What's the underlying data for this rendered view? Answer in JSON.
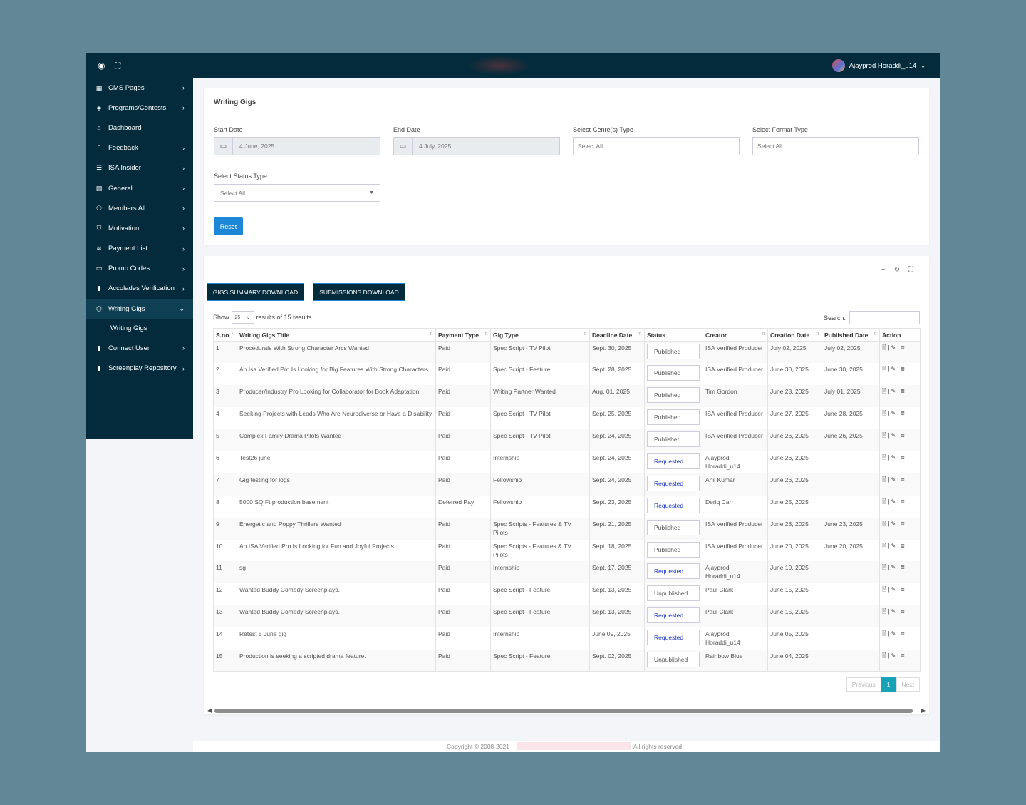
{
  "user": {
    "name": "Ajayprod Horaddi_u14"
  },
  "sidebar": {
    "items": [
      {
        "label": "CMS Pages",
        "icon": "grid-icon",
        "arrow": true
      },
      {
        "label": "Programs/Contests",
        "icon": "eye-icon",
        "arrow": true
      },
      {
        "label": "Dashboard",
        "icon": "home-icon",
        "arrow": false
      },
      {
        "label": "Feedback",
        "icon": "tablet-icon",
        "arrow": true
      },
      {
        "label": "ISA Insider",
        "icon": "list-icon",
        "arrow": true
      },
      {
        "label": "General",
        "icon": "database-icon",
        "arrow": true
      },
      {
        "label": "Members All",
        "icon": "users-icon",
        "arrow": true
      },
      {
        "label": "Motivation",
        "icon": "shield-icon",
        "arrow": true
      },
      {
        "label": "Payment List",
        "icon": "layers-icon",
        "arrow": true
      },
      {
        "label": "Promo Codes",
        "icon": "card-icon",
        "arrow": true
      },
      {
        "label": "Accolades Verification",
        "icon": "bar-chart-icon",
        "arrow": true
      },
      {
        "label": "Writing Gigs",
        "icon": "box-icon",
        "arrow": true,
        "active": true
      }
    ],
    "sub_item": "Writing Gigs",
    "bottom_items": [
      {
        "label": "Connect User",
        "icon": "bar-chart-icon"
      },
      {
        "label": "Screenplay Repository",
        "icon": "bar-chart-icon"
      }
    ]
  },
  "filters": {
    "title": "Writing Gigs",
    "start_date_label": "Start Date",
    "start_date": "4 June, 2025",
    "end_date_label": "End Date",
    "end_date": "4 July, 2025",
    "genre_label": "Select Genre(s) Type",
    "genre_value": "Select All",
    "format_label": "Select Format Type",
    "format_value": "Select All",
    "status_label": "Select Status Type",
    "status_value": "Select All",
    "reset_label": "Reset"
  },
  "table_card": {
    "btn_summary": "GIGS SUMMARY DOWNLOAD",
    "btn_submissions": "SUBMISSIONS DOWNLOAD",
    "show_label": "Show",
    "page_size": "25",
    "results_text": "results of 15 results",
    "search_label": "Search:",
    "columns": [
      "S.no",
      "Writing Gigs Title",
      "Payment Type",
      "Gig Type",
      "Deadline Date",
      "Status",
      "Creator",
      "Creation Date",
      "Published Date",
      "Action"
    ],
    "rows": [
      {
        "sno": "1",
        "title": "Procedurals With Strong Character Arcs Wanted",
        "payment": "Paid",
        "gig_type": "Spec Script - TV Pilot",
        "deadline": "Sept. 30, 2025",
        "status": "Published",
        "creator": "ISA Verified Producer",
        "created": "July 02, 2025",
        "published": "July 02, 2025"
      },
      {
        "sno": "2",
        "title": "An Isa Verified Pro Is Looking for Big Features With Strong Characters",
        "payment": "Paid",
        "gig_type": "Spec Script - Feature",
        "deadline": "Sept. 28, 2025",
        "status": "Published",
        "creator": "ISA Verified Producer",
        "created": "June 30, 2025",
        "published": "June 30, 2025"
      },
      {
        "sno": "3",
        "title": "Producer/Industry Pro Looking for Collaborator for Book Adaptation",
        "payment": "Paid",
        "gig_type": "Writing Partner Wanted",
        "deadline": "Aug. 01, 2025",
        "status": "Published",
        "creator": "Tim Gordon",
        "created": "June 28, 2025",
        "published": "July 01, 2025"
      },
      {
        "sno": "4",
        "title": "Seeking Projects with Leads Who Are Neurodiverse or Have a Disability",
        "payment": "Paid",
        "gig_type": "Spec Script - TV Pilot",
        "deadline": "Sept. 25, 2025",
        "status": "Published",
        "creator": "ISA Verified Producer",
        "created": "June 27, 2025",
        "published": "June 28, 2025"
      },
      {
        "sno": "5",
        "title": "Complex Family Drama Pilots Wanted",
        "payment": "Paid",
        "gig_type": "Spec Script - TV Pilot",
        "deadline": "Sept. 24, 2025",
        "status": "Published",
        "creator": "ISA Verified Producer",
        "created": "June 26, 2025",
        "published": "June 26, 2025"
      },
      {
        "sno": "6",
        "title": "Test26 june",
        "payment": "Paid",
        "gig_type": "Internship",
        "deadline": "Sept. 24, 2025",
        "status": "Requested",
        "creator": "Ajayprod Horaddi_u14",
        "created": "June 26, 2025",
        "published": ""
      },
      {
        "sno": "7",
        "title": "Gig testing for logs",
        "payment": "Paid",
        "gig_type": "Fellowship",
        "deadline": "Sept. 24, 2025",
        "status": "Requested",
        "creator": "Anil Kumar",
        "created": "June 26, 2025",
        "published": ""
      },
      {
        "sno": "8",
        "title": "5000 SQ Ft production basement",
        "payment": "Deferred Pay",
        "gig_type": "Fellowship",
        "deadline": "Sept. 23, 2025",
        "status": "Requested",
        "creator": "Deriq Carr",
        "created": "June 25, 2025",
        "published": ""
      },
      {
        "sno": "9",
        "title": "Energetic and Poppy Thrillers Wanted",
        "payment": "Paid",
        "gig_type": "Spec Scripts - Features & TV Pilots",
        "deadline": "Sept. 21, 2025",
        "status": "Published",
        "creator": "ISA Verified Producer",
        "created": "June 23, 2025",
        "published": "June 23, 2025"
      },
      {
        "sno": "10",
        "title": "An ISA Verified Pro Is Looking for Fun and Joyful Projects",
        "payment": "Paid",
        "gig_type": "Spec Scripts - Features & TV Pilots",
        "deadline": "Sept. 18, 2025",
        "status": "Published",
        "creator": "ISA Verified Producer",
        "created": "June 20, 2025",
        "published": "June 20, 2025"
      },
      {
        "sno": "11",
        "title": "sg",
        "payment": "Paid",
        "gig_type": "Internship",
        "deadline": "Sept. 17, 2025",
        "status": "Requested",
        "creator": "Ajayprod Horaddi_u14",
        "created": "June 19, 2025",
        "published": ""
      },
      {
        "sno": "12",
        "title": "Wanted Buddy Comedy Screenplays.",
        "payment": "Paid",
        "gig_type": "Spec Script - Feature",
        "deadline": "Sept. 13, 2025",
        "status": "Unpublished",
        "creator": "Paul Clark",
        "created": "June 15, 2025",
        "published": ""
      },
      {
        "sno": "13",
        "title": "Wanted Buddy Comedy Screenplays.",
        "payment": "Paid",
        "gig_type": "Spec Script - Feature",
        "deadline": "Sept. 13, 2025",
        "status": "Requested",
        "creator": "Paul Clark",
        "created": "June 15, 2025",
        "published": ""
      },
      {
        "sno": "14",
        "title": "Retest 5 June gig",
        "payment": "Paid",
        "gig_type": "Internship",
        "deadline": "June 09, 2025",
        "status": "Requested",
        "creator": "Ajayprod Horaddi_u14",
        "created": "June 05, 2025",
        "published": ""
      },
      {
        "sno": "15",
        "title": "Production is seeking a scripted drama feature.",
        "payment": "Paid",
        "gig_type": "Spec Script - Feature",
        "deadline": "Sept. 02, 2025",
        "status": "Unpublished",
        "creator": "Rainbow Blue",
        "created": "June 04, 2025",
        "published": ""
      }
    ],
    "pager": {
      "prev": "Previous",
      "current": "1",
      "next": "Next"
    }
  },
  "footer": {
    "copyright": "Copyright © 2008-2021",
    "rights": "All rights reserved"
  },
  "colors": {
    "nav_bg": "#032b3b",
    "accent": "#1b87d6",
    "requested": "#1a35c9",
    "page_active": "#17a2b8"
  }
}
